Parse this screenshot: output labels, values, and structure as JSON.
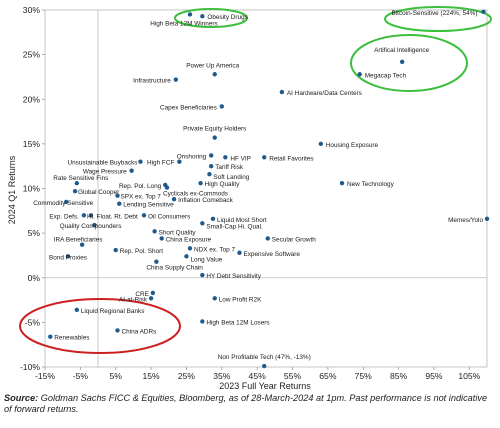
{
  "chart_data": {
    "type": "scatter",
    "xlabel": "2023 Full Year Returns",
    "ylabel": "2024 Q1 Returns",
    "xlim": [
      -15,
      110
    ],
    "ylim": [
      -10,
      30
    ],
    "x_ticks": [
      "-15%",
      "-5%",
      "5%",
      "15%",
      "25%",
      "35%",
      "45%",
      "55%",
      "65%",
      "75%",
      "85%",
      "95%",
      "105%"
    ],
    "y_ticks": [
      "-10%",
      "-5%",
      "0%",
      "5%",
      "10%",
      "15%",
      "20%",
      "25%",
      "30%"
    ],
    "grid": false,
    "point_color": "#1f5a8c",
    "highlight_colors": {
      "green": "#3cbf3c",
      "red": "#cc1f1f"
    },
    "points": [
      {
        "label": "Bitcoin-Sensitive (224%, 54%)",
        "x": 109,
        "y": 29.8
      },
      {
        "label": "Obesity Drugs",
        "x": 29.5,
        "y": 29.3
      },
      {
        "label": "High Beta 12M Winners",
        "x": 26,
        "y": 29.5
      },
      {
        "label": "Artifical Intelligence",
        "x": 86,
        "y": 24.2
      },
      {
        "label": "Megacap Tech",
        "x": 74,
        "y": 22.8
      },
      {
        "label": "Power Up America",
        "x": 33,
        "y": 22.8
      },
      {
        "label": "Infrastructure",
        "x": 22,
        "y": 22.2
      },
      {
        "label": "AI Hardware/Data Centers",
        "x": 52,
        "y": 20.8
      },
      {
        "label": "Capex Beneficiaries",
        "x": 35,
        "y": 19.2
      },
      {
        "label": "Private Equity Holders",
        "x": 33,
        "y": 15.7
      },
      {
        "label": "Housing Exposure",
        "x": 63,
        "y": 15
      },
      {
        "label": "Onshoring",
        "x": 32,
        "y": 13.7
      },
      {
        "label": "HF VIP",
        "x": 36,
        "y": 13.5
      },
      {
        "label": "Retail Favorites",
        "x": 47,
        "y": 13.5
      },
      {
        "label": "Unsustainable Buybacks",
        "x": 12,
        "y": 13
      },
      {
        "label": "High FCF",
        "x": 23,
        "y": 13
      },
      {
        "label": "Tariff Risk",
        "x": 32,
        "y": 12.5
      },
      {
        "label": "Wage Pressure",
        "x": 9.5,
        "y": 12
      },
      {
        "label": "Soft Landing",
        "x": 31.5,
        "y": 11.6
      },
      {
        "label": "Rate Sensitive Fins",
        "x": -6,
        "y": 10.6
      },
      {
        "label": "High Quality",
        "x": 29,
        "y": 10.6
      },
      {
        "label": "Rep. Pol. Long",
        "x": 19,
        "y": 10.4
      },
      {
        "label": "New Technology",
        "x": 69,
        "y": 10.6
      },
      {
        "label": "Cyclicals ex-Commods",
        "x": 19.5,
        "y": 10.1
      },
      {
        "label": "Global Cooper",
        "x": -6.5,
        "y": 9.7
      },
      {
        "label": "SPX ex. Top 7",
        "x": 5.5,
        "y": 9.2
      },
      {
        "label": "Inflation Comeback",
        "x": 21.5,
        "y": 8.8
      },
      {
        "label": "Commodity Sensitive",
        "x": -9,
        "y": 8.5
      },
      {
        "label": "Lending Sensitive",
        "x": 6,
        "y": 8.3
      },
      {
        "label": "Exp. Defs.",
        "x": -4,
        "y": 7
      },
      {
        "label": "Hi. Float. Rt. Debt",
        "x": -2,
        "y": 7
      },
      {
        "label": "Oil Consumers",
        "x": 13,
        "y": 7
      },
      {
        "label": "Liquid Most Short",
        "x": 32.5,
        "y": 6.6
      },
      {
        "label": "Small-Cap Hi. Qual.",
        "x": 29.5,
        "y": 6.1
      },
      {
        "label": "Memes/Yolo",
        "x": 110,
        "y": 6.6
      },
      {
        "label": "Quality Compounders",
        "x": -1,
        "y": 5.9
      },
      {
        "label": "Short Quality",
        "x": 16,
        "y": 5.2
      },
      {
        "label": "Secular Growth",
        "x": 48,
        "y": 4.4
      },
      {
        "label": "China Exposure",
        "x": 18,
        "y": 4.4
      },
      {
        "label": "IRA Beneficiaries",
        "x": -4.5,
        "y": 3.7
      },
      {
        "label": "NDX ex. Top 7",
        "x": 26,
        "y": 3.3
      },
      {
        "label": "Expensive Software",
        "x": 40,
        "y": 2.8
      },
      {
        "label": "Long Value",
        "x": 25,
        "y": 2.4
      },
      {
        "label": "Rep. Pol. Short",
        "x": 5,
        "y": 3.1
      },
      {
        "label": "Bond Proxies",
        "x": -8.5,
        "y": 2.4
      },
      {
        "label": "China Supply Chain",
        "x": 16.5,
        "y": 1.8
      },
      {
        "label": "HY Debt Sensitivity",
        "x": 29.5,
        "y": 0.3
      },
      {
        "label": "CRE",
        "x": 15.5,
        "y": -1.7
      },
      {
        "label": "AI-at-Risk",
        "x": 15,
        "y": -2.3
      },
      {
        "label": "Low Profit R2K",
        "x": 33,
        "y": -2.3
      },
      {
        "label": "Liquid Regional Banks",
        "x": -6,
        "y": -3.6
      },
      {
        "label": "High Beta 12M Losers",
        "x": 29.5,
        "y": -4.9
      },
      {
        "label": "China ADRs",
        "x": 5.5,
        "y": -5.9
      },
      {
        "label": "Renewables",
        "x": -13.5,
        "y": -6.6
      },
      {
        "label": "Non Profitable Tech (47%, -13%)",
        "x": 47,
        "y": -9.9
      }
    ]
  },
  "source": {
    "prefix": "Source:",
    "text": "Goldman Sachs FICC & Equities, Bloomberg, as of 28-March-2024 at 1pm. Past performance is not indicative of forward returns."
  }
}
